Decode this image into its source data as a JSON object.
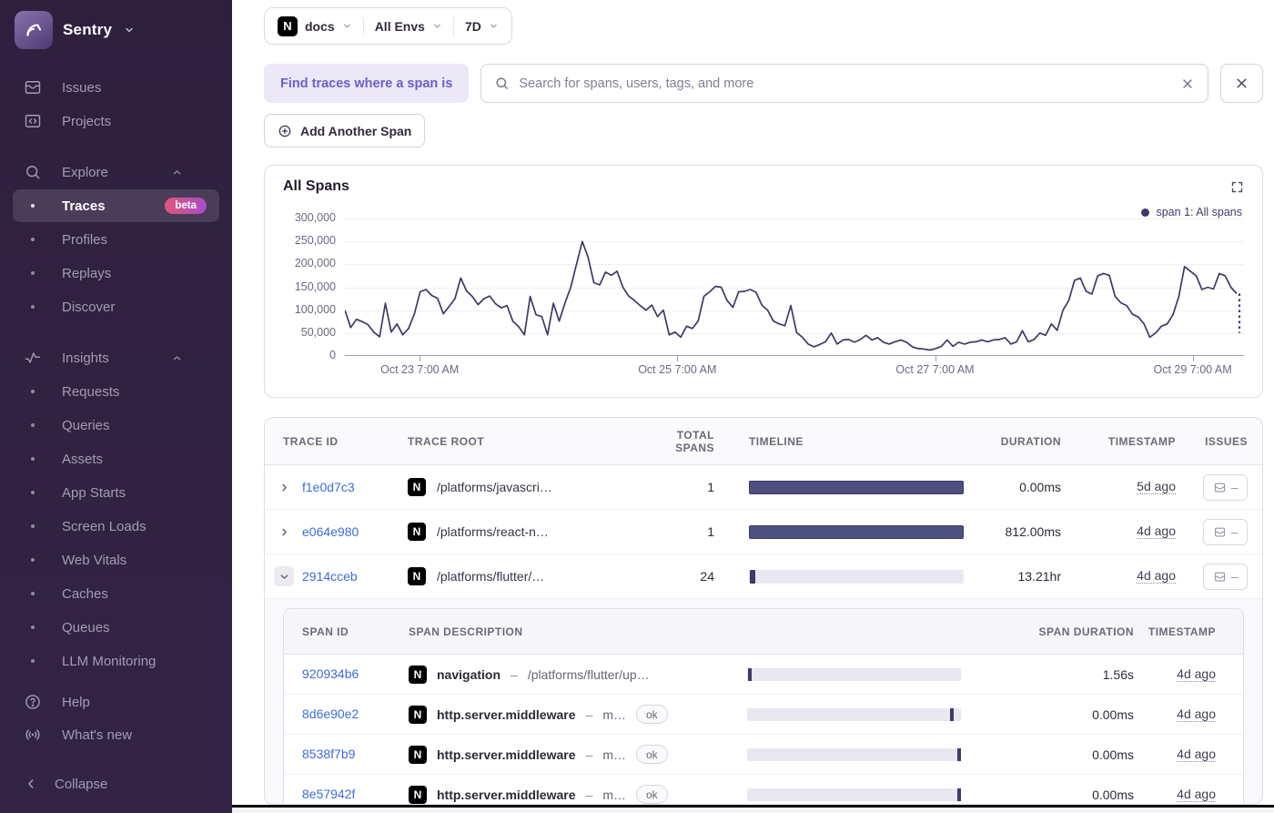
{
  "colors": {
    "sidebar_bg": "#2F213E",
    "sidebar_text": "#A79AB5",
    "accent_purple": "#6D5FC8",
    "chip_bg": "#ECE8F8",
    "link_blue": "#3D6BDB",
    "line": "#3E3A68",
    "bar_fill": "#4D4F7D",
    "track": "#E9E7F0",
    "beta_gradient_start": "#E1567C",
    "beta_gradient_end": "#A84BC8",
    "panel_border": "#E0DCE6",
    "header_text": "#6F687B"
  },
  "sidebar": {
    "brand": "Sentry",
    "primary": [
      {
        "label": "Issues",
        "icon": "issues-icon"
      },
      {
        "label": "Projects",
        "icon": "projects-icon"
      }
    ],
    "sections": [
      {
        "label": "Explore",
        "icon": "explore-search-icon",
        "items": [
          {
            "label": "Traces",
            "badge": "beta",
            "selected": true
          },
          {
            "label": "Profiles"
          },
          {
            "label": "Replays"
          },
          {
            "label": "Discover"
          }
        ]
      },
      {
        "label": "Insights",
        "icon": "insights-icon",
        "items": [
          {
            "label": "Requests"
          },
          {
            "label": "Queries"
          },
          {
            "label": "Assets"
          },
          {
            "label": "App Starts"
          },
          {
            "label": "Screen Loads"
          },
          {
            "label": "Web Vitals"
          },
          {
            "label": "Caches"
          },
          {
            "label": "Queues"
          },
          {
            "label": "LLM Monitoring"
          }
        ]
      }
    ],
    "footer": [
      {
        "label": "Help",
        "icon": "help-icon"
      },
      {
        "label": "What's new",
        "icon": "whats-new-icon"
      }
    ],
    "collapse": "Collapse"
  },
  "topbar": {
    "project": "docs",
    "environment": "All Envs",
    "period": "7D"
  },
  "filterbar": {
    "chip": "Find traces where a span is",
    "search_placeholder": "Search for spans, users, tags, and more"
  },
  "add_span_button": "Add Another Span",
  "chart": {
    "title": "All Spans",
    "legend": "span 1: All spans"
  },
  "chart_data": {
    "type": "line",
    "title": "All Spans",
    "legend_entries": [
      "span 1: All spans"
    ],
    "ylim": [
      0,
      300000
    ],
    "y_ticks": [
      {
        "value": 0,
        "label": "0"
      },
      {
        "value": 50000,
        "label": "50,000"
      },
      {
        "value": 100000,
        "label": "100,000"
      },
      {
        "value": 150000,
        "label": "150,000"
      },
      {
        "value": 200000,
        "label": "200,000"
      },
      {
        "value": 250000,
        "label": "250,000"
      },
      {
        "value": 300000,
        "label": "300,000"
      }
    ],
    "x_ticks": [
      {
        "label": "Oct 23 7:00 AM",
        "pos": 0.083
      },
      {
        "label": "Oct 25 7:00 AM",
        "pos": 0.369
      },
      {
        "label": "Oct 27 7:00 AM",
        "pos": 0.655
      },
      {
        "label": "Oct 29 7:00 AM",
        "pos": 0.941
      }
    ],
    "values": [
      100000,
      62000,
      80000,
      75000,
      68000,
      52000,
      42000,
      115000,
      52000,
      70000,
      46000,
      60000,
      92000,
      140000,
      145000,
      132000,
      126000,
      92000,
      108000,
      125000,
      170000,
      142000,
      130000,
      112000,
      125000,
      131000,
      114000,
      105000,
      110000,
      76000,
      64000,
      46000,
      130000,
      90000,
      86000,
      46000,
      115000,
      76000,
      115000,
      150000,
      200000,
      250000,
      215000,
      160000,
      155000,
      183000,
      176000,
      185000,
      150000,
      131000,
      121000,
      110000,
      100000,
      111000,
      86000,
      100000,
      46000,
      52000,
      41000,
      65000,
      60000,
      76000,
      130000,
      140000,
      152000,
      150000,
      121000,
      106000,
      140000,
      141000,
      145000,
      139000,
      111000,
      100000,
      76000,
      70000,
      66000,
      110000,
      51000,
      41000,
      26000,
      20000,
      25000,
      31000,
      50000,
      26000,
      35000,
      36000,
      30000,
      36000,
      45000,
      35000,
      40000,
      30000,
      26000,
      31000,
      35000,
      30000,
      20000,
      16000,
      15000,
      13000,
      16000,
      21000,
      35000,
      21000,
      30000,
      26000,
      30000,
      31000,
      35000,
      31000,
      35000,
      36000,
      40000,
      26000,
      31000,
      55000,
      31000,
      36000,
      50000,
      45000,
      70000,
      56000,
      100000,
      121000,
      165000,
      170000,
      141000,
      135000,
      175000,
      180000,
      176000,
      130000,
      116000,
      110000,
      91000,
      85000,
      70000,
      41000,
      50000,
      65000,
      70000,
      90000,
      130000,
      195000,
      185000,
      175000,
      145000,
      150000,
      146000,
      180000,
      175000,
      150000,
      136000
    ],
    "dashed_tail": {
      "from": 136000,
      "to": 50000
    },
    "grid": true,
    "legend_position": "top-right"
  },
  "trace_table": {
    "columns": [
      "TRACE ID",
      "TRACE ROOT",
      "TOTAL SPANS",
      "TIMELINE",
      "DURATION",
      "TIMESTAMP",
      "ISSUES"
    ],
    "rows": [
      {
        "id": "f1e0d7c3",
        "root": "/platforms/javascri…",
        "total_spans": "1",
        "duration": "0.00ms",
        "timestamp": "5d ago",
        "timeline_start_pct": 0,
        "timeline_width_pct": 100,
        "expanded": false
      },
      {
        "id": "e064e980",
        "root": "/platforms/react-n…",
        "total_spans": "1",
        "duration": "812.00ms",
        "timestamp": "4d ago",
        "timeline_start_pct": 0,
        "timeline_width_pct": 100,
        "expanded": false
      },
      {
        "id": "2914cceb",
        "root": "/platforms/flutter/…",
        "total_spans": "24",
        "duration": "13.21hr",
        "timestamp": "4d ago",
        "timeline_start_pct": 0.5,
        "timeline_width_pct": 2.5,
        "expanded": true
      }
    ],
    "issues_empty": "–"
  },
  "span_table": {
    "columns": [
      "SPAN ID",
      "SPAN DESCRIPTION",
      "",
      "SPAN DURATION",
      "TIMESTAMP"
    ],
    "separator": "–",
    "rows": [
      {
        "id": "920934b6",
        "op": "navigation",
        "description": "/platforms/flutter/up…",
        "status": "",
        "duration": "1.56s",
        "timestamp": "4d ago",
        "marker_pct": 0.5
      },
      {
        "id": "8d6e90e2",
        "op": "http.server.middleware",
        "description": "m…",
        "status": "ok",
        "duration": "0.00ms",
        "timestamp": "4d ago",
        "marker_pct": 95
      },
      {
        "id": "8538f7b9",
        "op": "http.server.middleware",
        "description": "m…",
        "status": "ok",
        "duration": "0.00ms",
        "timestamp": "4d ago",
        "marker_pct": 98.5
      },
      {
        "id": "8e57942f",
        "op": "http.server.middleware",
        "description": "m…",
        "status": "ok",
        "duration": "0.00ms",
        "timestamp": "4d ago",
        "marker_pct": 98.5
      }
    ]
  }
}
